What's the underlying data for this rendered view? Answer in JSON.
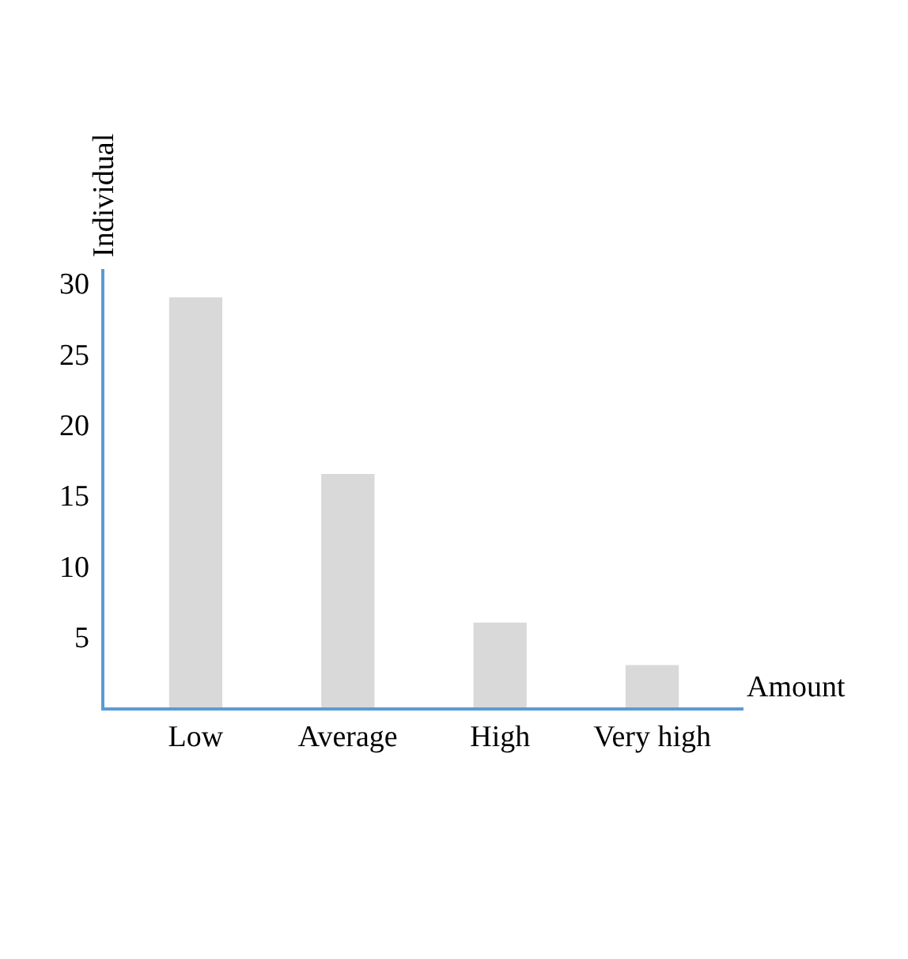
{
  "chart_data": {
    "type": "bar",
    "xlabel": "Amount",
    "ylabel": "Individual",
    "categories": [
      "Low",
      "Average",
      "High",
      "Very high"
    ],
    "values": [
      29,
      16.5,
      6,
      3
    ],
    "color": "#d9d9d9",
    "ylim": [
      0,
      31
    ],
    "yticks": [
      5,
      10,
      15,
      20,
      25,
      30
    ]
  }
}
